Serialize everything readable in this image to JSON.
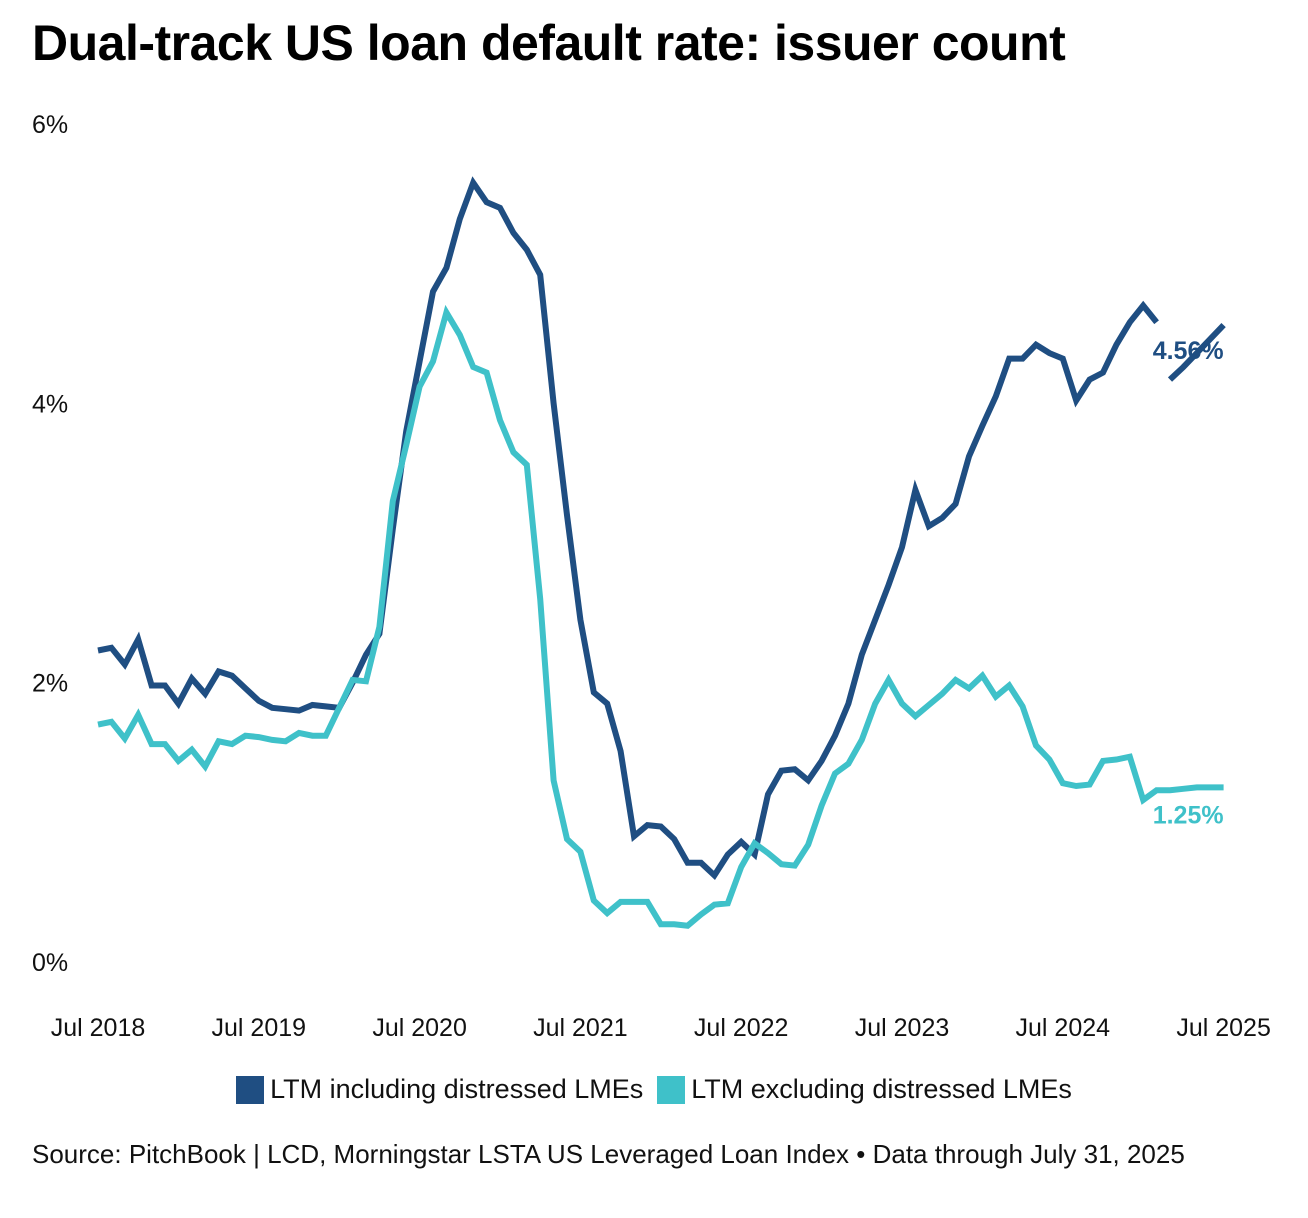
{
  "title": "Dual-track US loan default rate: issuer count",
  "source": "Source: PitchBook | LCD, Morningstar LSTA US Leveraged Loan Index • Data through July 31, 2025",
  "colors": {
    "including": "#1f4e82",
    "excluding": "#3fc1c9"
  },
  "chart_data": {
    "type": "line",
    "title": "Dual-track US loan default rate: issuer count",
    "xlabel": "",
    "ylabel": "",
    "ylim": [
      0,
      6
    ],
    "y_ticks": [
      "0%",
      "2%",
      "4%",
      "6%"
    ],
    "y_tick_values": [
      0,
      2,
      4,
      6
    ],
    "x_ticks": [
      "Jul 2018",
      "Jul 2019",
      "Jul 2020",
      "Jul 2021",
      "Jul 2022",
      "Jul 2023",
      "Jul 2024",
      "Jul 2025"
    ],
    "x_tick_values": [
      0,
      12,
      24,
      36,
      48,
      60,
      72,
      84
    ],
    "x_unit": "months since Jul 2018",
    "grid": false,
    "legend_position": "bottom",
    "series": [
      {
        "name": "LTM including distressed LMEs",
        "end_label": "4.56%",
        "values": [
          2.23,
          2.25,
          2.13,
          2.31,
          1.98,
          1.98,
          1.85,
          2.03,
          1.92,
          2.08,
          2.05,
          1.96,
          1.87,
          1.82,
          1.81,
          1.8,
          1.84,
          1.83,
          1.82,
          2.0,
          2.2,
          2.35,
          3.1,
          3.8,
          4.3,
          4.8,
          4.97,
          5.32,
          5.58,
          5.44,
          5.4,
          5.22,
          5.1,
          4.92,
          4.0,
          3.2,
          2.45,
          1.93,
          1.85,
          1.51,
          0.9,
          0.98,
          0.97,
          0.88,
          0.71,
          0.71,
          0.62,
          0.77,
          0.86,
          0.77,
          1.2,
          1.37,
          1.38,
          1.3,
          1.44,
          1.62,
          1.85,
          2.2,
          2.45,
          2.7,
          2.97,
          3.38,
          3.12,
          3.18,
          3.28,
          3.62,
          3.84,
          4.05,
          4.32,
          4.32,
          4.42,
          4.36,
          4.32,
          4.02,
          4.17,
          4.22,
          4.42,
          4.58,
          4.7,
          4.58,
          4.17,
          4.26,
          4.36,
          4.46,
          4.56
        ],
        "gaps_after": [
          79
        ]
      },
      {
        "name": "LTM excluding distressed LMEs",
        "end_label": "1.25%",
        "values": [
          1.7,
          1.72,
          1.6,
          1.77,
          1.56,
          1.56,
          1.44,
          1.52,
          1.4,
          1.58,
          1.56,
          1.62,
          1.61,
          1.59,
          1.58,
          1.64,
          1.62,
          1.62,
          1.82,
          2.02,
          2.01,
          2.4,
          3.3,
          3.7,
          4.12,
          4.3,
          4.65,
          4.49,
          4.26,
          4.22,
          3.88,
          3.65,
          3.56,
          2.6,
          1.3,
          0.88,
          0.79,
          0.44,
          0.35,
          0.43,
          0.43,
          0.43,
          0.27,
          0.27,
          0.26,
          0.34,
          0.41,
          0.42,
          0.68,
          0.85,
          0.78,
          0.7,
          0.69,
          0.84,
          1.12,
          1.35,
          1.42,
          1.59,
          1.85,
          2.02,
          1.85,
          1.76,
          1.84,
          1.92,
          2.02,
          1.96,
          2.05,
          1.9,
          1.98,
          1.83,
          1.55,
          1.45,
          1.28,
          1.26,
          1.27,
          1.44,
          1.45,
          1.47,
          1.16,
          1.23,
          1.23,
          1.24,
          1.25,
          1.25,
          1.25
        ],
        "gaps_after": []
      }
    ]
  }
}
